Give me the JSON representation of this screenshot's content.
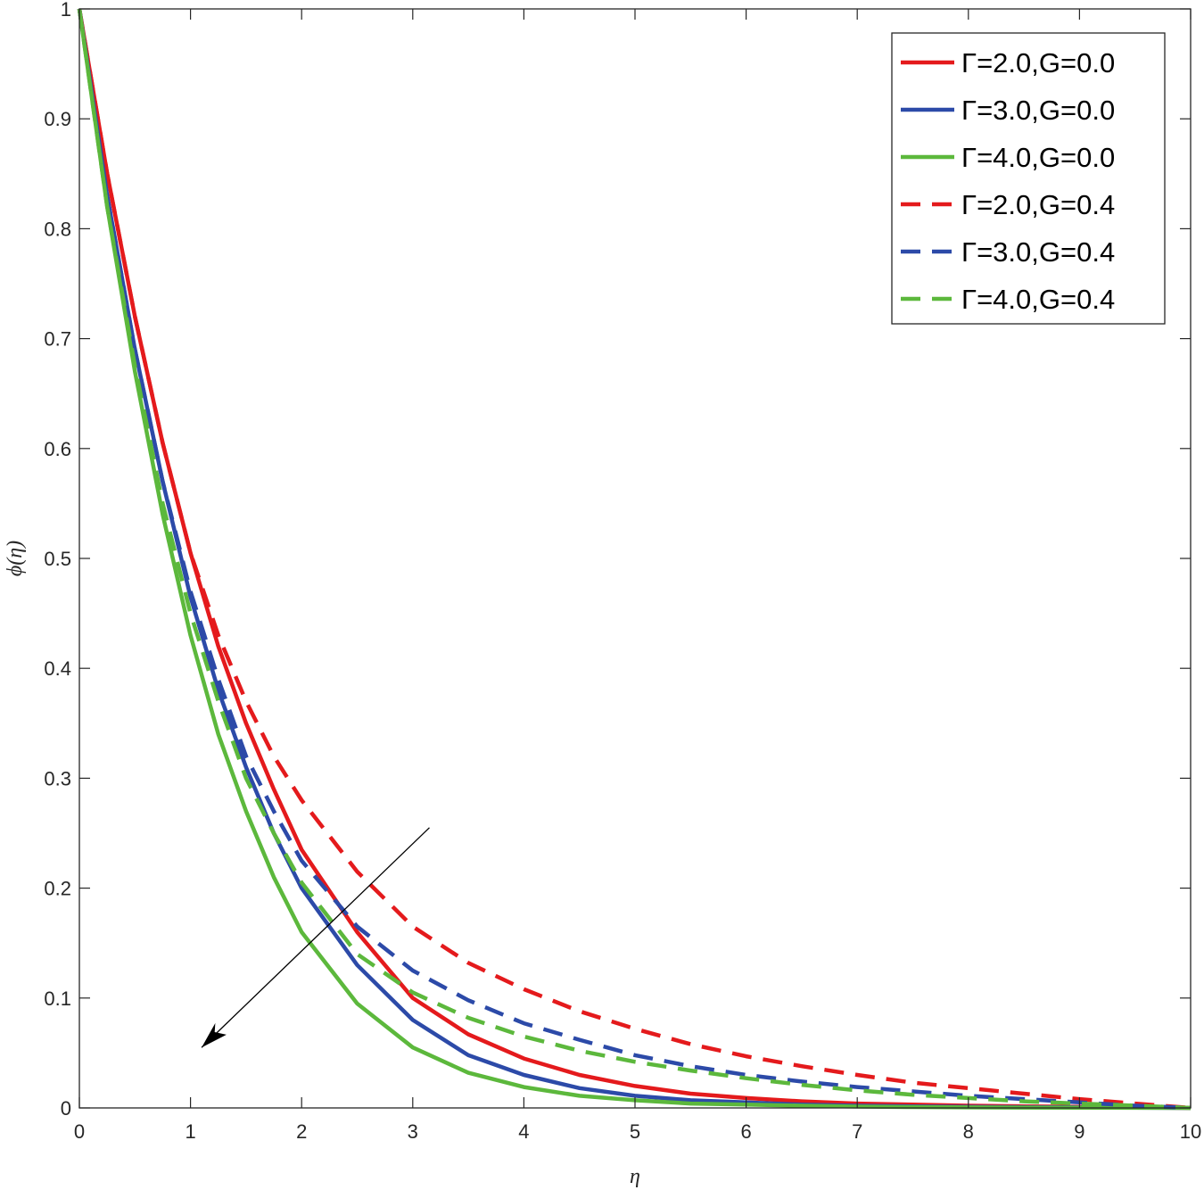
{
  "chart_data": {
    "type": "line",
    "title": "",
    "xlabel": "η",
    "ylabel": "ϕ(η)",
    "xlim": [
      0,
      10
    ],
    "ylim": [
      0,
      1
    ],
    "x_ticks": [
      "0",
      "1",
      "2",
      "3",
      "4",
      "5",
      "6",
      "7",
      "8",
      "9",
      "10"
    ],
    "y_ticks": [
      "0",
      "0.1",
      "0.2",
      "0.3",
      "0.4",
      "0.5",
      "0.6",
      "0.7",
      "0.8",
      "0.9",
      "1"
    ],
    "grid": false,
    "legend_position": "top-right",
    "x": [
      0,
      0.25,
      0.5,
      0.75,
      1,
      1.25,
      1.5,
      1.75,
      2,
      2.5,
      3,
      3.5,
      4,
      4.5,
      5,
      5.5,
      6,
      6.5,
      7,
      7.5,
      8,
      8.5,
      9,
      9.5,
      10
    ],
    "series": [
      {
        "name": "Γ=2.0,G=0.0",
        "color": "#e41a1c",
        "dash": "solid",
        "values": [
          1,
          0.85,
          0.72,
          0.605,
          0.505,
          0.42,
          0.35,
          0.29,
          0.235,
          0.16,
          0.1,
          0.067,
          0.045,
          0.03,
          0.02,
          0.013,
          0.009,
          0.006,
          0.004,
          0.003,
          0.002,
          0.0015,
          0.001,
          0.0005,
          0
        ]
      },
      {
        "name": "Γ=3.0,G=0.0",
        "color": "#2c4aa8",
        "dash": "solid",
        "values": [
          1,
          0.83,
          0.69,
          0.57,
          0.465,
          0.38,
          0.31,
          0.25,
          0.2,
          0.13,
          0.08,
          0.048,
          0.03,
          0.018,
          0.011,
          0.007,
          0.005,
          0.003,
          0.002,
          0.0015,
          0.001,
          0.0007,
          0.0005,
          0.0002,
          0
        ]
      },
      {
        "name": "Γ=4.0,G=0.0",
        "color": "#5cb83c",
        "dash": "solid",
        "values": [
          1,
          0.82,
          0.67,
          0.54,
          0.43,
          0.34,
          0.27,
          0.21,
          0.16,
          0.095,
          0.055,
          0.032,
          0.019,
          0.011,
          0.007,
          0.004,
          0.003,
          0.002,
          0.0012,
          0.0008,
          0.0005,
          0.0003,
          0.0002,
          0.0001,
          0
        ]
      },
      {
        "name": "Γ=2.0,G=0.4",
        "color": "#e41a1c",
        "dash": "dashed",
        "values": [
          1,
          0.85,
          0.72,
          0.605,
          0.505,
          0.43,
          0.37,
          0.32,
          0.28,
          0.215,
          0.165,
          0.132,
          0.108,
          0.088,
          0.072,
          0.058,
          0.047,
          0.038,
          0.03,
          0.023,
          0.018,
          0.013,
          0.008,
          0.004,
          0
        ]
      },
      {
        "name": "Γ=3.0,G=0.4",
        "color": "#2c4aa8",
        "dash": "dashed",
        "values": [
          1,
          0.83,
          0.69,
          0.57,
          0.47,
          0.39,
          0.32,
          0.27,
          0.225,
          0.165,
          0.125,
          0.098,
          0.077,
          0.062,
          0.048,
          0.038,
          0.03,
          0.024,
          0.019,
          0.015,
          0.011,
          0.008,
          0.005,
          0.002,
          0
        ]
      },
      {
        "name": "Γ=4.0,G=0.4",
        "color": "#5cb83c",
        "dash": "dashed",
        "values": [
          1,
          0.82,
          0.675,
          0.55,
          0.45,
          0.37,
          0.3,
          0.25,
          0.205,
          0.14,
          0.105,
          0.082,
          0.065,
          0.052,
          0.042,
          0.034,
          0.027,
          0.021,
          0.016,
          0.012,
          0.009,
          0.006,
          0.004,
          0.002,
          0
        ]
      }
    ],
    "annotation_arrow": {
      "from": [
        3.15,
        0.255
      ],
      "to": [
        1.1,
        0.055
      ]
    }
  }
}
